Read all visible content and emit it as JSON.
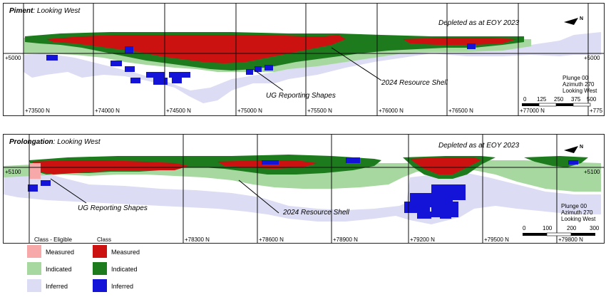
{
  "colors": {
    "measured_eligible": "#f7a8a8",
    "indicated_eligible": "#a6d8a0",
    "inferred_eligible": "#dcdcf4",
    "measured": "#cc1111",
    "indicated": "#1d7a1d",
    "inferred": "#1414d8",
    "grid": "#111111"
  },
  "top_panel": {
    "title_bold": "Piment",
    "title_rest": ": Looking West",
    "depleted": "Depleted as at EOY 2023",
    "north": "N",
    "elev_left": "+5000",
    "elev_right": "+5000",
    "ticks": [
      "+73500 N",
      "+74000 N",
      "+74500 N",
      "+75000 N",
      "+75500 N",
      "+76000 N",
      "+76500 N",
      "+77000 N",
      "+775"
    ],
    "ann_shell": "2024 Resource Shell",
    "ann_ug": "UG Reporting Shapes",
    "plunge": [
      "Plunge 00",
      "Azimuth 270",
      "Looking West"
    ],
    "scale": [
      "0",
      "125",
      "250",
      "375",
      "500"
    ]
  },
  "bottom_panel": {
    "title_bold": "Prolongation",
    "title_rest": ": Looking West",
    "depleted": "Depleted as at EOY 2023",
    "north": "N",
    "elev_left": "+5100",
    "elev_right": "+5100",
    "ticks": [
      "+78300 N",
      "+78600 N",
      "+78900 N",
      "+79200 N",
      "+79500 N",
      "+79800 N"
    ],
    "ann_ug": "UG Reporting Shapes",
    "ann_shell": "2024 Resource Shell",
    "plunge": [
      "Plunge 00",
      "Azimuth 270",
      "Looking West"
    ],
    "scale": [
      "0",
      "100",
      "200",
      "300"
    ]
  },
  "legend": {
    "col1_header": "Class - Eligible",
    "col2_header": "Class",
    "labels": [
      "Measured",
      "Indicated",
      "Inferred"
    ]
  }
}
